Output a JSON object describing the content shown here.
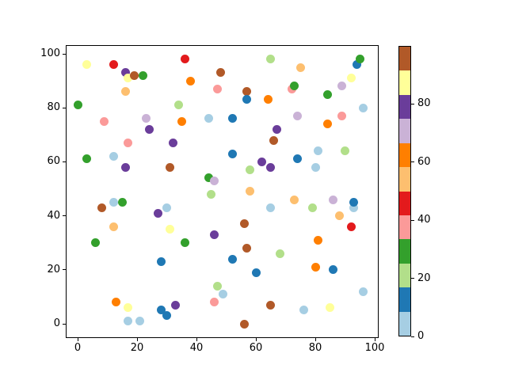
{
  "chart_data": {
    "type": "scatter",
    "title": "",
    "xlabel": "",
    "ylabel": "",
    "xlim": [
      -5,
      105
    ],
    "ylim": [
      -5,
      104
    ],
    "grid": false,
    "x_ticks": [
      0,
      20,
      40,
      60,
      80,
      100
    ],
    "y_ticks": [
      0,
      20,
      40,
      60,
      80,
      100
    ],
    "palette_name": "Paired (12 discrete colors)",
    "palette": {
      "light-blue": "#a6cee3",
      "blue": "#1f78b4",
      "light-green": "#b2df8a",
      "green": "#33a02c",
      "pink": "#fb9a99",
      "red": "#e31a1c",
      "light-orange": "#fdbf6f",
      "orange": "#ff7f00",
      "light-purple": "#cab2d6",
      "purple": "#6a3d9a",
      "yellow": "#ffff99",
      "brown": "#b15928"
    },
    "colorbar": {
      "range": [
        0,
        100
      ],
      "ticks": [
        0,
        20,
        40,
        60,
        80
      ],
      "color_names_bottom_to_top": [
        "light-blue",
        "blue",
        "light-green",
        "green",
        "pink",
        "red",
        "light-orange",
        "orange",
        "light-purple",
        "purple",
        "yellow",
        "brown"
      ]
    },
    "points": [
      {
        "x": 3,
        "y": 96,
        "color": "yellow"
      },
      {
        "x": 12,
        "y": 96,
        "color": "red"
      },
      {
        "x": 36,
        "y": 98,
        "color": "red"
      },
      {
        "x": 16,
        "y": 93,
        "color": "purple"
      },
      {
        "x": 17,
        "y": 91,
        "color": "yellow"
      },
      {
        "x": 19,
        "y": 92,
        "color": "brown"
      },
      {
        "x": 22,
        "y": 92,
        "color": "green"
      },
      {
        "x": 48,
        "y": 93,
        "color": "brown"
      },
      {
        "x": 65,
        "y": 98,
        "color": "light-green"
      },
      {
        "x": 94,
        "y": 96,
        "color": "blue"
      },
      {
        "x": 95,
        "y": 98,
        "color": "green"
      },
      {
        "x": 92,
        "y": 91,
        "color": "yellow"
      },
      {
        "x": 38,
        "y": 90,
        "color": "orange"
      },
      {
        "x": 16,
        "y": 86,
        "color": "light-orange"
      },
      {
        "x": 47,
        "y": 87,
        "color": "pink"
      },
      {
        "x": 57,
        "y": 86,
        "color": "brown"
      },
      {
        "x": 72,
        "y": 87,
        "color": "pink"
      },
      {
        "x": 73,
        "y": 88,
        "color": "green"
      },
      {
        "x": 75,
        "y": 95,
        "color": "light-orange"
      },
      {
        "x": 89,
        "y": 88,
        "color": "light-purple"
      },
      {
        "x": 84,
        "y": 85,
        "color": "green"
      },
      {
        "x": 57,
        "y": 83,
        "color": "blue"
      },
      {
        "x": 64,
        "y": 83,
        "color": "orange"
      },
      {
        "x": 0,
        "y": 81,
        "color": "green"
      },
      {
        "x": 34,
        "y": 81,
        "color": "light-green"
      },
      {
        "x": 96,
        "y": 80,
        "color": "light-blue"
      },
      {
        "x": 9,
        "y": 75,
        "color": "pink"
      },
      {
        "x": 23,
        "y": 76,
        "color": "light-purple"
      },
      {
        "x": 35,
        "y": 75,
        "color": "orange"
      },
      {
        "x": 44,
        "y": 76,
        "color": "light-blue"
      },
      {
        "x": 52,
        "y": 76,
        "color": "blue"
      },
      {
        "x": 74,
        "y": 77,
        "color": "light-purple"
      },
      {
        "x": 89,
        "y": 77,
        "color": "pink"
      },
      {
        "x": 24,
        "y": 72,
        "color": "purple"
      },
      {
        "x": 67,
        "y": 72,
        "color": "purple"
      },
      {
        "x": 84,
        "y": 74,
        "color": "orange"
      },
      {
        "x": 17,
        "y": 67,
        "color": "pink"
      },
      {
        "x": 32,
        "y": 67,
        "color": "purple"
      },
      {
        "x": 66,
        "y": 68,
        "color": "brown"
      },
      {
        "x": 3,
        "y": 61,
        "color": "green"
      },
      {
        "x": 12,
        "y": 62,
        "color": "light-blue"
      },
      {
        "x": 52,
        "y": 63,
        "color": "blue"
      },
      {
        "x": 62,
        "y": 60,
        "color": "purple"
      },
      {
        "x": 81,
        "y": 64,
        "color": "light-blue"
      },
      {
        "x": 90,
        "y": 64,
        "color": "light-green"
      },
      {
        "x": 16,
        "y": 58,
        "color": "purple"
      },
      {
        "x": 31,
        "y": 58,
        "color": "brown"
      },
      {
        "x": 58,
        "y": 57,
        "color": "light-green"
      },
      {
        "x": 65,
        "y": 58,
        "color": "purple"
      },
      {
        "x": 74,
        "y": 61,
        "color": "blue"
      },
      {
        "x": 80,
        "y": 58,
        "color": "light-blue"
      },
      {
        "x": 44,
        "y": 54,
        "color": "green"
      },
      {
        "x": 46,
        "y": 53,
        "color": "light-purple"
      },
      {
        "x": 58,
        "y": 49,
        "color": "light-orange"
      },
      {
        "x": 45,
        "y": 48,
        "color": "light-green"
      },
      {
        "x": 12,
        "y": 45,
        "color": "light-blue"
      },
      {
        "x": 15,
        "y": 45,
        "color": "green"
      },
      {
        "x": 8,
        "y": 43,
        "color": "brown"
      },
      {
        "x": 27,
        "y": 41,
        "color": "purple"
      },
      {
        "x": 30,
        "y": 43,
        "color": "light-blue"
      },
      {
        "x": 65,
        "y": 43,
        "color": "light-blue"
      },
      {
        "x": 73,
        "y": 46,
        "color": "light-orange"
      },
      {
        "x": 79,
        "y": 43,
        "color": "light-green"
      },
      {
        "x": 86,
        "y": 46,
        "color": "light-purple"
      },
      {
        "x": 93,
        "y": 43,
        "color": "light-blue"
      },
      {
        "x": 93,
        "y": 45,
        "color": "blue"
      },
      {
        "x": 88,
        "y": 40,
        "color": "light-orange"
      },
      {
        "x": 12,
        "y": 36,
        "color": "light-orange"
      },
      {
        "x": 31,
        "y": 35,
        "color": "yellow"
      },
      {
        "x": 56,
        "y": 37,
        "color": "brown"
      },
      {
        "x": 92,
        "y": 36,
        "color": "red"
      },
      {
        "x": 46,
        "y": 33,
        "color": "purple"
      },
      {
        "x": 6,
        "y": 30,
        "color": "green"
      },
      {
        "x": 36,
        "y": 30,
        "color": "green"
      },
      {
        "x": 57,
        "y": 28,
        "color": "brown"
      },
      {
        "x": 81,
        "y": 31,
        "color": "orange"
      },
      {
        "x": 68,
        "y": 26,
        "color": "light-green"
      },
      {
        "x": 28,
        "y": 23,
        "color": "blue"
      },
      {
        "x": 52,
        "y": 24,
        "color": "blue"
      },
      {
        "x": 60,
        "y": 19,
        "color": "blue"
      },
      {
        "x": 80,
        "y": 21,
        "color": "orange"
      },
      {
        "x": 86,
        "y": 20,
        "color": "blue"
      },
      {
        "x": 47,
        "y": 14,
        "color": "light-green"
      },
      {
        "x": 49,
        "y": 11,
        "color": "light-blue"
      },
      {
        "x": 96,
        "y": 12,
        "color": "light-blue"
      },
      {
        "x": 13,
        "y": 8,
        "color": "orange"
      },
      {
        "x": 17,
        "y": 6,
        "color": "yellow"
      },
      {
        "x": 46,
        "y": 8,
        "color": "pink"
      },
      {
        "x": 33,
        "y": 7,
        "color": "purple"
      },
      {
        "x": 65,
        "y": 7,
        "color": "brown"
      },
      {
        "x": 85,
        "y": 6,
        "color": "yellow"
      },
      {
        "x": 76,
        "y": 5,
        "color": "light-blue"
      },
      {
        "x": 17,
        "y": 1,
        "color": "light-blue"
      },
      {
        "x": 21,
        "y": 1,
        "color": "light-blue"
      },
      {
        "x": 28,
        "y": 5,
        "color": "blue"
      },
      {
        "x": 30,
        "y": 3,
        "color": "blue"
      },
      {
        "x": 56,
        "y": 0,
        "color": "brown"
      }
    ]
  }
}
